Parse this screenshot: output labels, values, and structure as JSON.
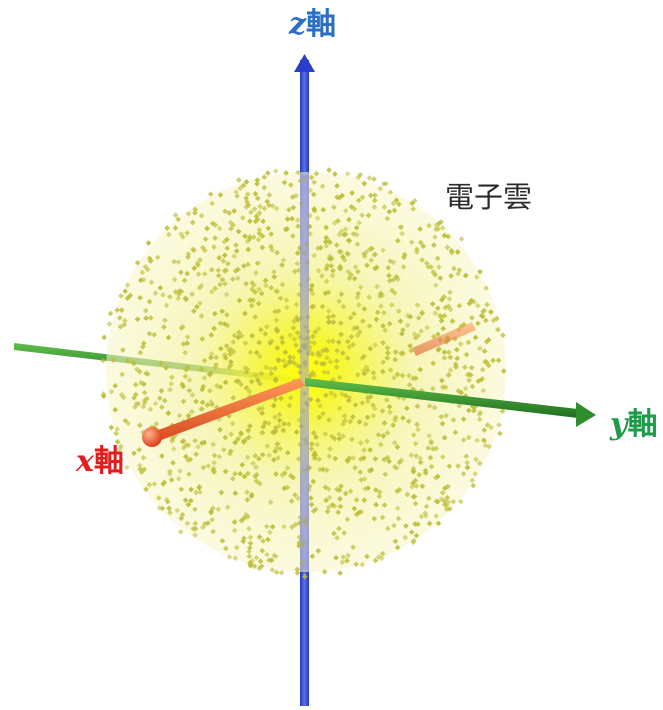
{
  "labels": {
    "z_axis": {
      "var": "z",
      "suffix": "軸"
    },
    "y_axis": {
      "var": "y",
      "suffix": "軸"
    },
    "x_axis": {
      "var": "x",
      "suffix": "軸"
    },
    "cloud": "電子雲"
  },
  "colors": {
    "z_axis": "#1f3fd6",
    "z_label": "#2a6fc4",
    "y_axis": "#2c8a2c",
    "y_label": "#1f9a4a",
    "x_axis": "#e05a2a",
    "x_label": "#e21d1d",
    "cloud_core": "#ffff1a",
    "cloud_dots": "#bdbd3a"
  },
  "icons": {
    "z_arrow": "arrow-up-icon",
    "y_arrow": "arrow-right-icon",
    "x_end": "sphere-icon"
  }
}
